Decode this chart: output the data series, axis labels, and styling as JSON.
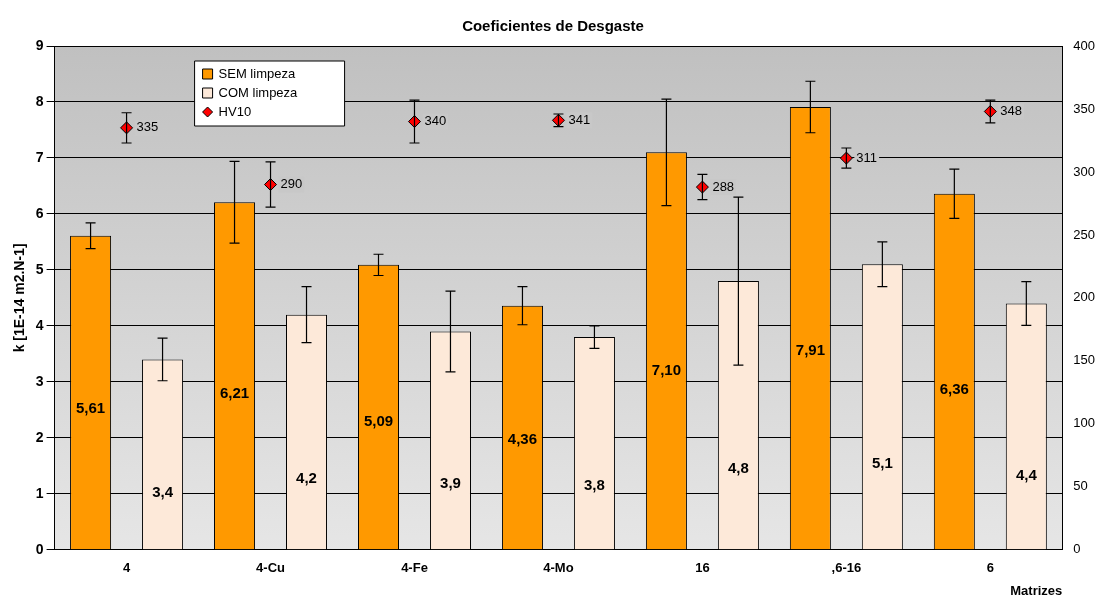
{
  "chart_data": {
    "type": "bar",
    "title": "Coeficientes de Desgaste",
    "xlabel": "Matrizes",
    "ylabel": "k [1E-14 m2.N-1]",
    "categories": [
      "4",
      "4-Cu",
      "4-Fe",
      "4-Mo",
      "16",
      ",6-16",
      "6"
    ],
    "series": [
      {
        "name": "SEM limpeza",
        "color": "#ff9900",
        "values": [
          5.61,
          6.21,
          5.09,
          4.36,
          7.1,
          7.91,
          6.36
        ],
        "errors": [
          0.23,
          0.73,
          0.19,
          0.34,
          0.95,
          0.46,
          0.44
        ],
        "value_labels": [
          "5,61",
          "6,21",
          "5,09",
          "4,36",
          "7,10",
          "7,91",
          "6,36"
        ]
      },
      {
        "name": "COM limpeza",
        "color": "#fde9d9",
        "values": [
          3.4,
          4.2,
          3.9,
          3.8,
          4.8,
          5.1,
          4.4
        ],
        "errors": [
          0.38,
          0.5,
          0.72,
          0.2,
          1.5,
          0.4,
          0.39
        ],
        "value_labels": [
          "3,4",
          "4,2",
          "3,9",
          "3,8",
          "4,8",
          "5,1",
          "4,4"
        ]
      },
      {
        "name": "HV10",
        "type": "scatter",
        "axis": "y2",
        "color": "#ff0000",
        "marker": "diamond",
        "values": [
          335,
          290,
          340,
          341,
          288,
          311,
          348
        ],
        "errors": [
          12,
          18,
          17,
          5,
          10,
          8,
          9
        ],
        "value_labels": [
          "335",
          "290",
          "340",
          "341",
          "288",
          "311",
          "348"
        ]
      }
    ],
    "ylim": [
      0,
      9
    ],
    "yticks": [
      0,
      1,
      2,
      3,
      4,
      5,
      6,
      7,
      8,
      9
    ],
    "y2lim": [
      0,
      400
    ],
    "y2ticks": [
      0,
      50,
      100,
      150,
      200,
      250,
      300,
      350,
      400
    ],
    "grid": "y",
    "legend": "top left"
  }
}
